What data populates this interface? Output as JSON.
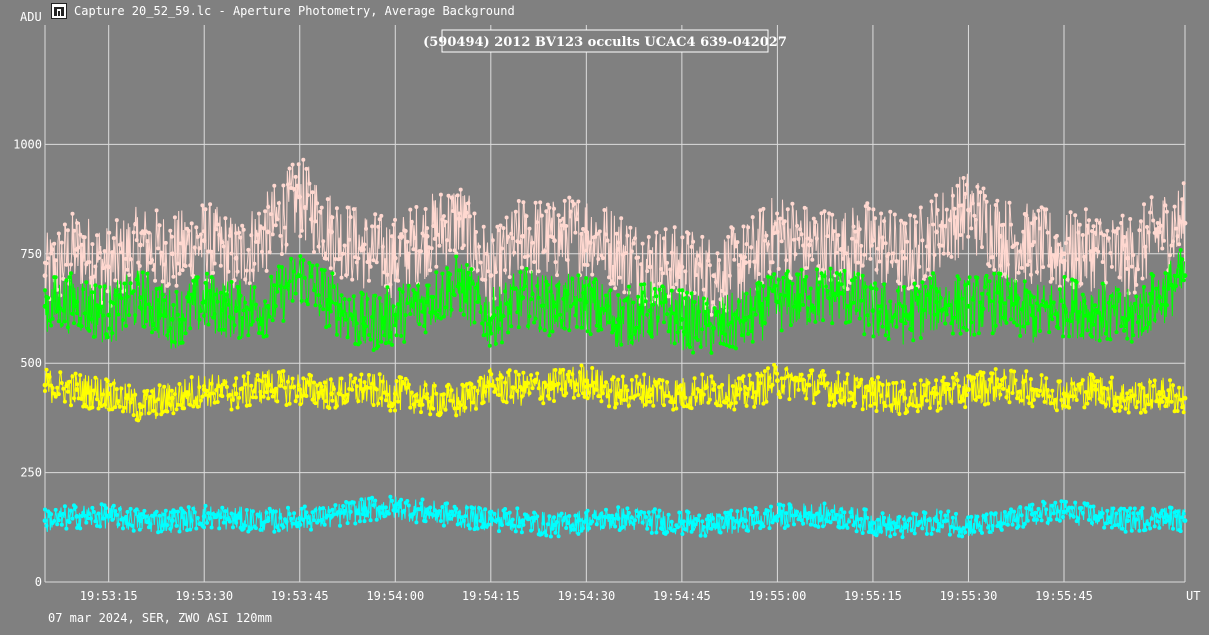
{
  "window": {
    "title": "Capture 20_52_59.lc - Aperture Photometry, Average Background",
    "icon": "chart-app-icon"
  },
  "footer": {
    "note": "07 mar 2024, SER, ZWO ASI 120mm"
  },
  "chart_data": {
    "type": "line",
    "title": "(590494) 2012 BV123 occults UCAC4 639-042027",
    "ylabel": "ADU",
    "xlabel": "UT",
    "ylim": [
      0,
      1250
    ],
    "y_ticks": [
      0,
      250,
      500,
      750,
      1000
    ],
    "xlim": [
      "19:53:05",
      "19:56:04"
    ],
    "x_ticks": [
      "19:53:15",
      "19:53:30",
      "19:53:45",
      "19:54:00",
      "19:54:15",
      "19:54:30",
      "19:54:45",
      "19:55:00",
      "19:55:15",
      "19:55:30",
      "19:55:45"
    ],
    "grid": true,
    "legend": "none",
    "series": [
      {
        "color": "#ffd8d0",
        "times": [
          "19:53:05",
          "19:53:10",
          "19:53:15",
          "19:53:20",
          "19:53:25",
          "19:53:30",
          "19:53:35",
          "19:53:40",
          "19:53:45",
          "19:53:50",
          "19:53:55",
          "19:54:00",
          "19:54:05",
          "19:54:10",
          "19:54:15",
          "19:54:20",
          "19:54:25",
          "19:54:30",
          "19:54:35",
          "19:54:40",
          "19:54:45",
          "19:54:50",
          "19:54:55",
          "19:55:00",
          "19:55:05",
          "19:55:10",
          "19:55:15",
          "19:55:20",
          "19:55:25",
          "19:55:30",
          "19:55:35",
          "19:55:40",
          "19:55:45",
          "19:55:50",
          "19:55:55",
          "19:56:00",
          "19:56:04"
        ],
        "values": [
          700,
          760,
          720,
          770,
          750,
          780,
          740,
          800,
          880,
          800,
          760,
          740,
          790,
          830,
          700,
          790,
          780,
          800,
          760,
          720,
          720,
          700,
          730,
          800,
          770,
          760,
          780,
          740,
          800,
          850,
          790,
          770,
          750,
          760,
          740,
          800,
          820
        ]
      },
      {
        "color": "#00ff00",
        "times": [
          "19:53:05",
          "19:53:10",
          "19:53:15",
          "19:53:20",
          "19:53:25",
          "19:53:30",
          "19:53:35",
          "19:53:40",
          "19:53:45",
          "19:53:50",
          "19:53:55",
          "19:54:00",
          "19:54:05",
          "19:54:10",
          "19:54:15",
          "19:54:20",
          "19:54:25",
          "19:54:30",
          "19:54:35",
          "19:54:40",
          "19:54:45",
          "19:54:50",
          "19:54:55",
          "19:55:00",
          "19:55:05",
          "19:55:10",
          "19:55:15",
          "19:55:20",
          "19:55:25",
          "19:55:30",
          "19:55:35",
          "19:55:40",
          "19:55:45",
          "19:55:50",
          "19:55:55",
          "19:56:00",
          "19:56:04"
        ],
        "values": [
          630,
          640,
          610,
          650,
          600,
          640,
          620,
          630,
          700,
          640,
          590,
          610,
          640,
          680,
          600,
          650,
          630,
          640,
          600,
          620,
          600,
          580,
          600,
          640,
          650,
          660,
          620,
          610,
          640,
          630,
          640,
          610,
          630,
          620,
          600,
          650,
          700
        ]
      },
      {
        "color": "#ffff00",
        "times": [
          "19:53:05",
          "19:53:10",
          "19:53:15",
          "19:53:20",
          "19:53:25",
          "19:53:30",
          "19:53:35",
          "19:53:40",
          "19:53:45",
          "19:53:50",
          "19:53:55",
          "19:54:00",
          "19:54:05",
          "19:54:10",
          "19:54:15",
          "19:54:20",
          "19:54:25",
          "19:54:30",
          "19:54:35",
          "19:54:40",
          "19:54:45",
          "19:54:50",
          "19:54:55",
          "19:55:00",
          "19:55:05",
          "19:55:10",
          "19:55:15",
          "19:55:20",
          "19:55:25",
          "19:55:30",
          "19:55:35",
          "19:55:40",
          "19:55:45",
          "19:55:50",
          "19:55:55",
          "19:56:00",
          "19:56:04"
        ],
        "values": [
          450,
          440,
          430,
          400,
          420,
          440,
          430,
          450,
          440,
          430,
          440,
          430,
          420,
          410,
          450,
          440,
          450,
          460,
          430,
          440,
          430,
          440,
          430,
          460,
          450,
          440,
          430,
          420,
          430,
          440,
          450,
          440,
          430,
          440,
          420,
          430,
          420
        ]
      },
      {
        "color": "#00ffff",
        "times": [
          "19:53:05",
          "19:53:10",
          "19:53:15",
          "19:53:20",
          "19:53:25",
          "19:53:30",
          "19:53:35",
          "19:53:40",
          "19:53:45",
          "19:53:50",
          "19:53:55",
          "19:54:00",
          "19:54:05",
          "19:54:10",
          "19:54:15",
          "19:54:20",
          "19:54:25",
          "19:54:30",
          "19:54:35",
          "19:54:40",
          "19:54:45",
          "19:54:50",
          "19:54:55",
          "19:55:00",
          "19:55:05",
          "19:55:10",
          "19:55:15",
          "19:55:20",
          "19:55:25",
          "19:55:30",
          "19:55:35",
          "19:55:40",
          "19:55:45",
          "19:55:50",
          "19:55:55",
          "19:56:00",
          "19:56:04"
        ],
        "values": [
          140,
          150,
          150,
          140,
          140,
          150,
          145,
          140,
          145,
          150,
          165,
          170,
          160,
          150,
          145,
          140,
          130,
          140,
          145,
          140,
          135,
          130,
          140,
          150,
          155,
          150,
          135,
          125,
          140,
          130,
          135,
          155,
          160,
          150,
          140,
          150,
          140
        ]
      }
    ]
  }
}
